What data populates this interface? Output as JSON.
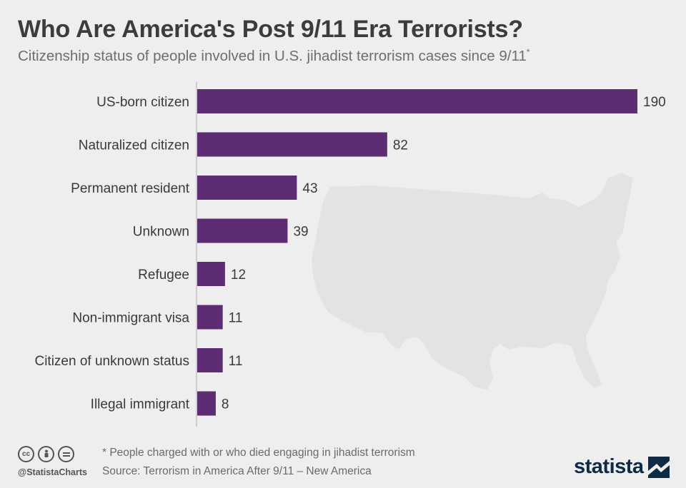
{
  "header": {
    "title": "Who Are America's Post 9/11 Era Terrorists?",
    "subtitle": "Citizenship status of people involved in U.S. jihadist terrorism cases since 9/11",
    "subtitle_marker": "*"
  },
  "chart_data": {
    "type": "bar",
    "orientation": "horizontal",
    "title": "Who Are America's Post 9/11 Era Terrorists?",
    "subtitle": "Citizenship status of people involved in U.S. jihadist terrorism cases since 9/11*",
    "categories": [
      "US-born citizen",
      "Naturalized citizen",
      "Permanent resident",
      "Unknown",
      "Refugee",
      "Non-immigrant visa",
      "Citizen of unknown status",
      "Illegal immigrant"
    ],
    "values": [
      190,
      82,
      43,
      39,
      12,
      11,
      11,
      8
    ],
    "xlabel": "",
    "ylabel": "",
    "xlim": [
      0,
      190
    ],
    "grid": false,
    "legend": "none",
    "bar_color": "#5e2c72",
    "background_image": "us-map-silhouette"
  },
  "footer": {
    "note": "* People charged with or who died engaging in jihadist terrorism",
    "source": "Source: Terrorism in America After 9/11 – New America",
    "handle": "@StatistaCharts",
    "brand": "statista",
    "license_icons": [
      "cc-icon",
      "by-icon",
      "nd-icon"
    ]
  },
  "colors": {
    "background": "#eeeeee",
    "bar": "#5e2c72",
    "map": "#e3e3e3",
    "title": "#3c3c3c",
    "brand": "#0f2a44"
  }
}
